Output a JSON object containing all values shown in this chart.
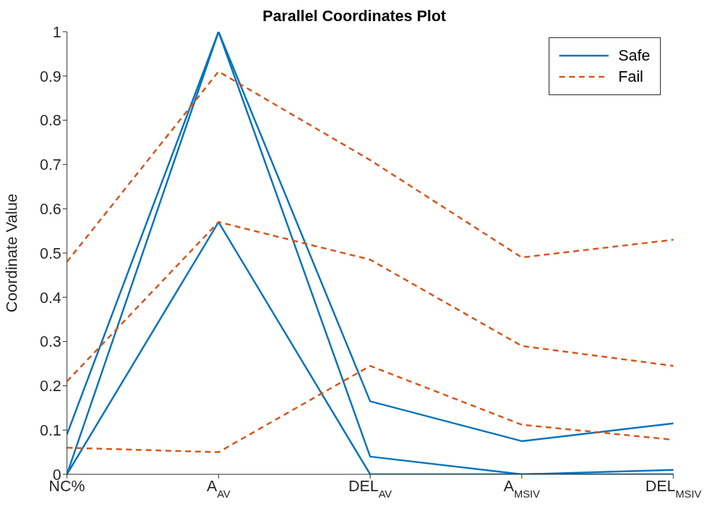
{
  "chart_data": {
    "type": "line",
    "title": "Parallel Coordinates Plot",
    "ylabel": "Coordinate Value",
    "categories": [
      "NC%",
      "A$_{AV}$",
      "DEL$_{AV}$",
      "A$_{MSIV}$",
      "DEL$_{MSIV}$"
    ],
    "series": [
      {
        "name": "Safe",
        "color": "#0072bd",
        "line_style": "solid",
        "values": [
          0.09,
          1,
          0.04,
          0,
          0.01
        ]
      },
      {
        "color": "#0072bd",
        "line_style": "solid",
        "values": [
          0,
          1,
          0.165,
          0.075,
          0.115
        ]
      },
      {
        "color": "#0072bd",
        "line_style": "solid",
        "values": [
          0,
          0.57,
          0,
          0,
          0
        ]
      },
      {
        "name": "Fail",
        "color": "#d95319",
        "line_style": "dashed",
        "values": [
          0.48,
          0.91,
          0.71,
          0.49,
          0.53
        ]
      },
      {
        "color": "#d95319",
        "line_style": "dashed",
        "values": [
          0.21,
          0.57,
          0.485,
          0.29,
          0.245
        ]
      },
      {
        "color": "#d95319",
        "line_style": "dashed",
        "values": [
          0.06,
          0.05,
          0.245,
          0.112,
          0.078
        ]
      }
    ],
    "ylim": [
      0,
      1
    ],
    "yticks": [
      0,
      0.1,
      0.2,
      0.3,
      0.4,
      0.5,
      0.6,
      0.7,
      0.8,
      0.9,
      1
    ],
    "grid": false,
    "legend": "top right",
    "marker": "none"
  }
}
